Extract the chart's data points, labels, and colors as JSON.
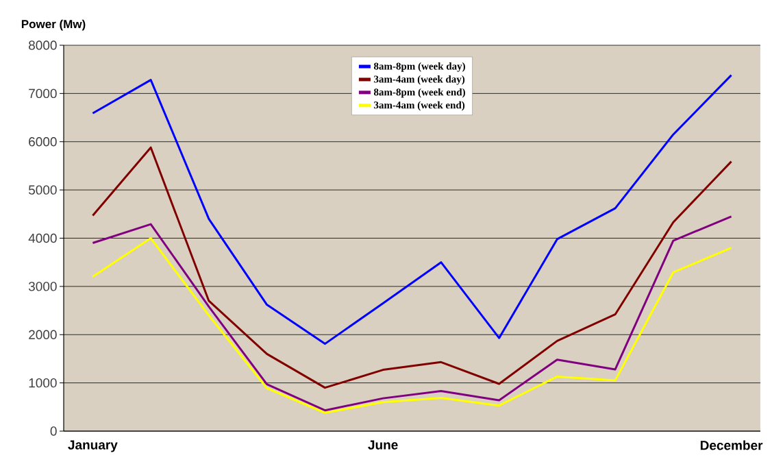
{
  "chart_data": {
    "type": "line",
    "ylabel": "Power (Mw)",
    "categories": [
      "January",
      null,
      null,
      null,
      null,
      "June",
      null,
      null,
      null,
      null,
      null,
      "December"
    ],
    "series": [
      {
        "name": "8am-8pm (week day)",
        "color": "#0000ff",
        "values": [
          6590,
          7280,
          4400,
          2620,
          1810,
          2650,
          3500,
          1930,
          3980,
          4620,
          6150,
          7380
        ]
      },
      {
        "name": "3am-4am (week day)",
        "color": "#800000",
        "values": [
          4470,
          5880,
          2700,
          1600,
          900,
          1270,
          1430,
          980,
          1870,
          2420,
          4330,
          5590
        ]
      },
      {
        "name": "8am-8pm (week end)",
        "color": "#800080",
        "values": [
          3900,
          4290,
          2580,
          970,
          430,
          680,
          830,
          640,
          1480,
          1280,
          3950,
          4450
        ]
      },
      {
        "name": "3am-4am (week end)",
        "color": "#ffff00",
        "values": [
          3200,
          4000,
          2400,
          890,
          380,
          600,
          690,
          530,
          1130,
          1050,
          3290,
          3800
        ]
      }
    ],
    "ylim": [
      0,
      8000
    ],
    "yticks": [
      0,
      1000,
      2000,
      3000,
      4000,
      5000,
      6000,
      7000,
      8000
    ],
    "grid": "y",
    "legend": "top",
    "marker": "none",
    "line_style": "solid"
  }
}
